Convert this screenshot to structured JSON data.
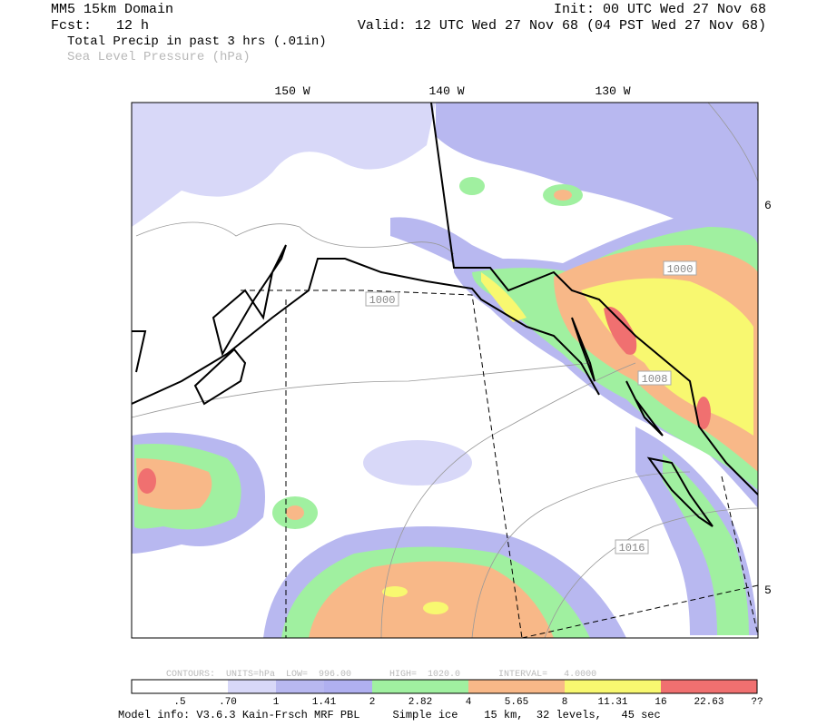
{
  "header": {
    "model": "MM5 15km Domain",
    "init": "Init: 00 UTC Wed 27 Nov 68",
    "fcst": "Fcst:   12 h",
    "valid": "Valid: 12 UTC Wed 27 Nov 68 (04 PST Wed 27 Nov 68)",
    "field_primary": "Total Precip in past 3 hrs (.01in)",
    "field_secondary": "Sea Level Pressure (hPa)"
  },
  "map": {
    "longitude_labels": [
      "150 W",
      "140 W",
      "130 W"
    ],
    "latitude_labels": [
      "6",
      "5"
    ],
    "isobar_labels": [
      "1000",
      "1000",
      "1008",
      "1016"
    ]
  },
  "contour_info": "CONTOURS:  UNITS=hPa  LOW=  996.00       HIGH=  1020.0       INTERVAL=   4.0000",
  "colorbar_labels": [
    ".5",
    ".70",
    "1",
    "1.41",
    "2",
    "2.82",
    "4",
    "5.65",
    "8",
    "11.31",
    "16",
    "22.63",
    "??"
  ],
  "footer": "Model info: V3.6.3 Kain-Frsch MRF PBL     Simple ice    15 km,  32 levels,   45 sec"
}
